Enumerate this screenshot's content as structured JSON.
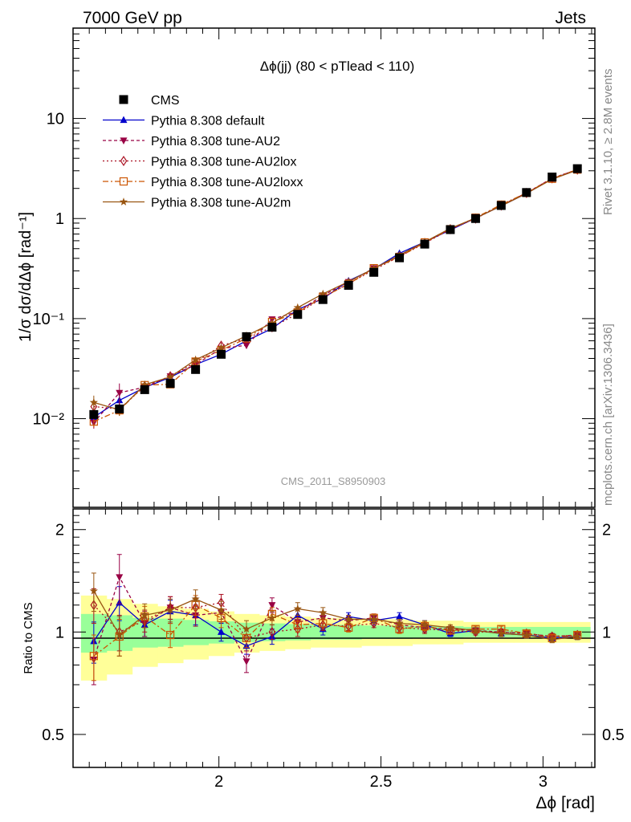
{
  "header": {
    "left_label": "7000 GeV pp",
    "right_label": "Jets",
    "subtitle": "Δϕ(jj) (80 < pTlead < 110)",
    "analysis_id": "CMS_2011_S8950903",
    "side_label_top": "Rivet 3.1.10, ≥ 2.8M events",
    "side_label_bottom": "mcplots.cern.ch [arXiv:1306.3436]"
  },
  "chart_data": {
    "type": "line",
    "title": "Δϕ(jj) (80 < pTlead < 110)",
    "xlabel": "Δϕ [rad]",
    "ylabel_main": "1/σ dσ/dΔϕ [rad⁻¹]",
    "ylabel_ratio": "Ratio to CMS",
    "xlim": [
      1.55,
      3.16
    ],
    "ylim_main": [
      0.0013,
      80
    ],
    "ylim_ratio": [
      0.4,
      2.3
    ],
    "yscale_main": "log",
    "yscale_ratio": "log",
    "x_ticks": [
      2,
      2.5,
      3
    ],
    "x_tick_labels": [
      "2",
      "2.5",
      "3"
    ],
    "y_ticks_main": [
      0.01,
      0.1,
      1,
      10
    ],
    "y_tick_labels_main": [
      "10⁻²",
      "10⁻¹",
      "1",
      "10"
    ],
    "y_ticks_ratio": [
      0.5,
      1,
      2
    ],
    "y_tick_labels_ratio": [
      "0.5",
      "1",
      "2"
    ],
    "legend_position": "top-left",
    "x": [
      1.614,
      1.693,
      1.771,
      1.85,
      1.928,
      2.007,
      2.085,
      2.164,
      2.243,
      2.321,
      2.4,
      2.478,
      2.557,
      2.635,
      2.714,
      2.792,
      2.871,
      2.949,
      3.028,
      3.106
    ],
    "data": {
      "name": "CMS",
      "values": [
        0.011,
        0.0125,
        0.0195,
        0.0225,
        0.031,
        0.044,
        0.066,
        0.082,
        0.11,
        0.155,
        0.215,
        0.29,
        0.405,
        0.555,
        0.775,
        1.0,
        1.35,
        1.82,
        2.6,
        3.15
      ],
      "band_outer": [
        0.28,
        0.25,
        0.21,
        0.19,
        0.17,
        0.15,
        0.13,
        0.12,
        0.11,
        0.1,
        0.1,
        0.09,
        0.09,
        0.08,
        0.08,
        0.07,
        0.07,
        0.07,
        0.07,
        0.07
      ],
      "band_inner": [
        0.13,
        0.12,
        0.1,
        0.095,
        0.085,
        0.075,
        0.065,
        0.06,
        0.055,
        0.05,
        0.05,
        0.045,
        0.045,
        0.04,
        0.04,
        0.035,
        0.035,
        0.035,
        0.035,
        0.035
      ]
    },
    "series": [
      {
        "name": "Pythia 8.308 default",
        "color": "#0000cc",
        "dash": "none",
        "marker": "triangle",
        "ratio": [
          0.94,
          1.22,
          1.05,
          1.15,
          1.12,
          1.0,
          0.91,
          0.97,
          1.12,
          1.02,
          1.11,
          1.08,
          1.11,
          1.05,
          0.99,
          1.01,
          0.99,
          0.98,
          0.96,
          0.97
        ],
        "ratio_err": [
          0.13,
          0.14,
          0.08,
          0.09,
          0.07,
          0.06,
          0.05,
          0.05,
          0.05,
          0.04,
          0.03,
          0.03,
          0.03,
          0.03,
          0.02,
          0.02,
          0.02,
          0.02,
          0.02,
          0.02
        ]
      },
      {
        "name": "Pythia 8.308 tune-AU2",
        "color": "#990044",
        "dash": "4,3",
        "marker": "triangle-down",
        "ratio": [
          0.83,
          1.45,
          1.06,
          1.18,
          1.12,
          1.14,
          0.82,
          1.2,
          1.07,
          1.1,
          1.08,
          1.1,
          1.05,
          1.03,
          1.02,
          1.01,
          1.0,
          0.99,
          0.97,
          0.98
        ],
        "ratio_err": [
          0.13,
          0.24,
          0.09,
          0.09,
          0.08,
          0.07,
          0.06,
          0.06,
          0.05,
          0.04,
          0.03,
          0.03,
          0.03,
          0.03,
          0.02,
          0.02,
          0.02,
          0.02,
          0.02,
          0.02
        ]
      },
      {
        "name": "Pythia 8.308 tune-AU2lox",
        "color": "#aa1122",
        "dash": "2,3",
        "marker": "diamond",
        "ratio": [
          1.2,
          1.0,
          1.08,
          1.18,
          1.18,
          1.22,
          0.96,
          1.0,
          1.02,
          1.05,
          1.04,
          1.06,
          1.03,
          1.02,
          1.01,
          1.0,
          1.0,
          0.99,
          0.97,
          0.98
        ],
        "ratio_err": [
          0.14,
          0.12,
          0.08,
          0.09,
          0.08,
          0.07,
          0.06,
          0.05,
          0.05,
          0.04,
          0.03,
          0.03,
          0.03,
          0.03,
          0.02,
          0.02,
          0.02,
          0.02,
          0.02,
          0.02
        ]
      },
      {
        "name": "Pythia 8.308 tune-AU2loxx",
        "color": "#cc5500",
        "dash": "7,3,2,3",
        "marker": "square-open",
        "ratio": [
          0.85,
          0.97,
          1.11,
          0.98,
          1.2,
          1.1,
          0.96,
          1.13,
          1.05,
          1.06,
          1.03,
          1.1,
          1.02,
          1.04,
          1.01,
          1.02,
          1.02,
          0.99,
          0.96,
          0.98
        ],
        "ratio_err": [
          0.13,
          0.12,
          0.08,
          0.08,
          0.08,
          0.07,
          0.06,
          0.05,
          0.05,
          0.04,
          0.03,
          0.03,
          0.03,
          0.03,
          0.02,
          0.02,
          0.02,
          0.02,
          0.02,
          0.02
        ]
      },
      {
        "name": "Pythia 8.308 tune-AU2m",
        "color": "#995511",
        "dash": "none",
        "marker": "star",
        "ratio": [
          1.32,
          0.98,
          1.12,
          1.16,
          1.25,
          1.16,
          1.02,
          1.1,
          1.17,
          1.14,
          1.09,
          1.09,
          1.06,
          1.05,
          1.03,
          1.01,
          0.99,
          0.98,
          0.95,
          0.97
        ],
        "ratio_err": [
          0.17,
          0.13,
          0.09,
          0.09,
          0.08,
          0.07,
          0.06,
          0.05,
          0.05,
          0.04,
          0.03,
          0.03,
          0.03,
          0.03,
          0.02,
          0.02,
          0.02,
          0.02,
          0.02,
          0.02
        ]
      }
    ]
  }
}
